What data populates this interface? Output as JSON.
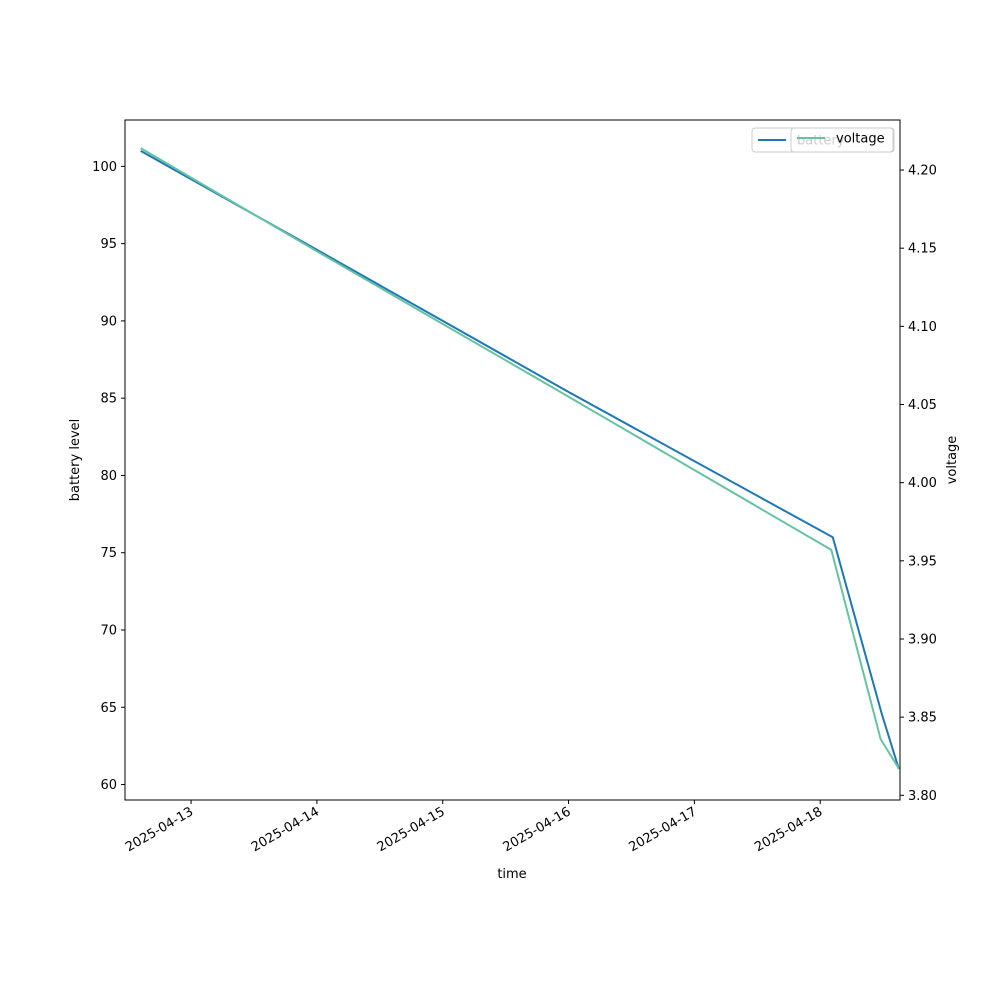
{
  "chart_data": {
    "type": "line",
    "title": "",
    "xlabel": "time",
    "ylabel_left": "battery level",
    "ylabel_right": "voltage",
    "x_ticks": [
      "2025-04-13",
      "2025-04-14",
      "2025-04-15",
      "2025-04-16",
      "2025-04-17",
      "2025-04-18"
    ],
    "xlim": [
      "2025-04-12 11:24",
      "2025-04-18 15:13"
    ],
    "ylim_left": [
      59,
      103
    ],
    "ylim_right": [
      3.797,
      4.232
    ],
    "y_ticks_left": [
      60,
      65,
      70,
      75,
      80,
      85,
      90,
      95,
      100
    ],
    "y_ticks_right": [
      "3.80",
      "3.85",
      "3.90",
      "3.95",
      "4.00",
      "4.05",
      "4.10",
      "4.15",
      "4.20"
    ],
    "grid": false,
    "legend_position": "top-right",
    "series": [
      {
        "name": "battery",
        "axis": "left",
        "color": "#1f77b4",
        "points": [
          {
            "x": "2025-04-12 14:24",
            "y": 101
          },
          {
            "x": "2025-04-14 00:00",
            "y": 94.6
          },
          {
            "x": "2025-04-16 00:00",
            "y": 85.4
          },
          {
            "x": "2025-04-18 02:24",
            "y": 76
          },
          {
            "x": "2025-04-18 11:48",
            "y": 64.5
          },
          {
            "x": "2025-04-18 15:00",
            "y": 61
          }
        ]
      },
      {
        "name": "voltage",
        "axis": "right",
        "color": "#66c2a5",
        "points": [
          {
            "x": "2025-04-12 14:24",
            "y": 4.214
          },
          {
            "x": "2025-04-14 00:00",
            "y": 4.148
          },
          {
            "x": "2025-04-16 00:00",
            "y": 4.055
          },
          {
            "x": "2025-04-18 02:07",
            "y": 3.957
          },
          {
            "x": "2025-04-18 11:31",
            "y": 3.836
          },
          {
            "x": "2025-04-18 15:00",
            "y": 3.817
          }
        ]
      }
    ]
  }
}
